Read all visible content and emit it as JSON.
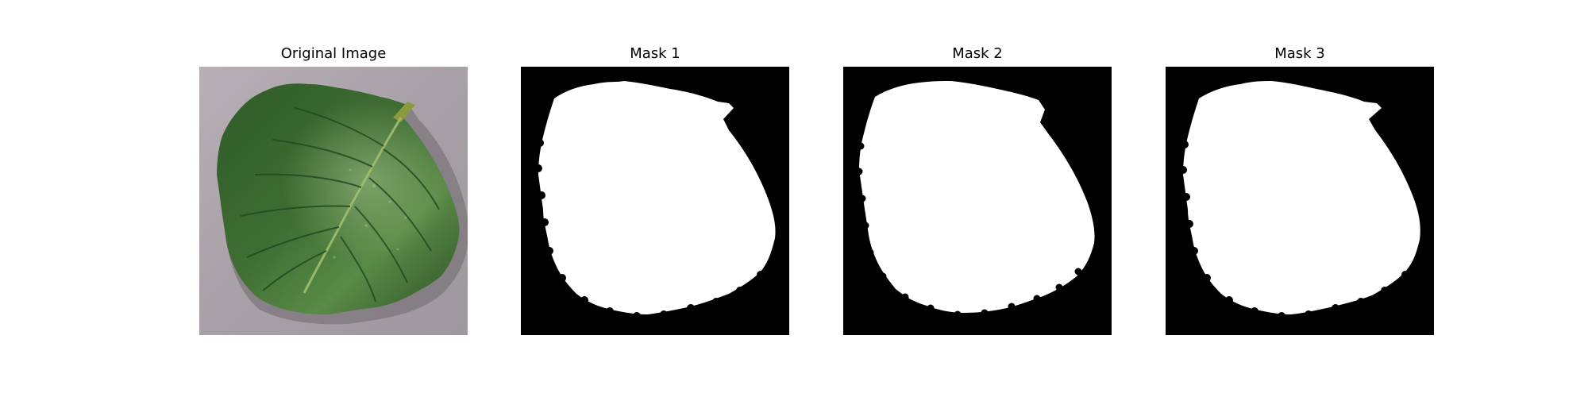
{
  "figure": {
    "panels": [
      {
        "title": "Original Image",
        "image_kind": "photo",
        "subject": "green leaf on grey textured background"
      },
      {
        "title": "Mask 1",
        "image_kind": "binary-mask",
        "foreground_color": "#ffffff",
        "background_color": "#000000"
      },
      {
        "title": "Mask 2",
        "image_kind": "binary-mask",
        "foreground_color": "#ffffff",
        "background_color": "#000000"
      },
      {
        "title": "Mask 3",
        "image_kind": "binary-mask",
        "foreground_color": "#ffffff",
        "background_color": "#000000"
      }
    ]
  },
  "colors": {
    "photo_background": "#a9a2a8",
    "leaf_dark": "#2f5a2a",
    "leaf_mid": "#4f7f3e",
    "leaf_light": "#7aa05f",
    "mask_fg": "#ffffff",
    "mask_bg": "#000000"
  }
}
